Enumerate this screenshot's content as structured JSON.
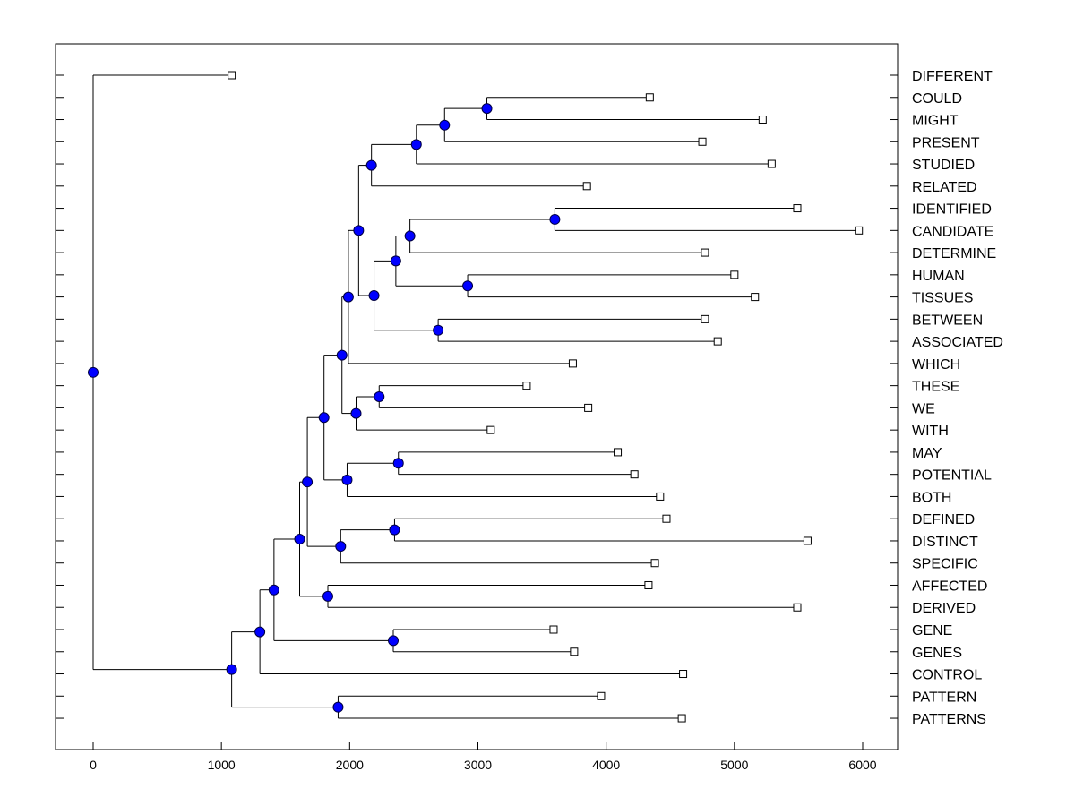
{
  "chart_data": {
    "type": "dendrogram",
    "title": "",
    "xlabel": "",
    "ylabel": "",
    "xlim": [
      -300,
      6300
    ],
    "x_ticks": [
      0,
      1000,
      2000,
      3000,
      4000,
      5000,
      6000
    ],
    "grid": false,
    "leaves": [
      {
        "label": "DIFFERENT",
        "value": 1080
      },
      {
        "label": "COULD",
        "value": 4340
      },
      {
        "label": "MIGHT",
        "value": 5220
      },
      {
        "label": "PRESENT",
        "value": 4750
      },
      {
        "label": "STUDIED",
        "value": 5290
      },
      {
        "label": "RELATED",
        "value": 3850
      },
      {
        "label": "IDENTIFIED",
        "value": 5490
      },
      {
        "label": "CANDIDATE",
        "value": 5970
      },
      {
        "label": "DETERMINE",
        "value": 4770
      },
      {
        "label": "HUMAN",
        "value": 5000
      },
      {
        "label": "TISSUES",
        "value": 5160
      },
      {
        "label": "BETWEEN",
        "value": 4770
      },
      {
        "label": "ASSOCIATED",
        "value": 4870
      },
      {
        "label": "WHICH",
        "value": 3740
      },
      {
        "label": "THESE",
        "value": 3380
      },
      {
        "label": "WE",
        "value": 3860
      },
      {
        "label": "WITH",
        "value": 3100
      },
      {
        "label": "MAY",
        "value": 4090
      },
      {
        "label": "POTENTIAL",
        "value": 4220
      },
      {
        "label": "BOTH",
        "value": 4420
      },
      {
        "label": "DEFINED",
        "value": 4470
      },
      {
        "label": "DISTINCT",
        "value": 5570
      },
      {
        "label": "SPECIFIC",
        "value": 4380
      },
      {
        "label": "AFFECTED",
        "value": 4330
      },
      {
        "label": "DERIVED",
        "value": 5490
      },
      {
        "label": "GENE",
        "value": 3590
      },
      {
        "label": "GENES",
        "value": 3750
      },
      {
        "label": "CONTROL",
        "value": 4600
      },
      {
        "label": "PATTERN",
        "value": 3960
      },
      {
        "label": "PATTERNS",
        "value": 4590
      }
    ],
    "merges": [
      {
        "id": "m1",
        "value": 3070,
        "children": [
          "COULD",
          "MIGHT"
        ]
      },
      {
        "id": "m2",
        "value": 2740,
        "children": [
          "m1",
          "PRESENT"
        ]
      },
      {
        "id": "m3",
        "value": 2520,
        "children": [
          "m2",
          "STUDIED"
        ]
      },
      {
        "id": "m4",
        "value": 2170,
        "children": [
          "m3",
          "RELATED"
        ]
      },
      {
        "id": "m5",
        "value": 3600,
        "children": [
          "IDENTIFIED",
          "CANDIDATE"
        ]
      },
      {
        "id": "m6",
        "value": 2470,
        "children": [
          "m5",
          "DETERMINE"
        ]
      },
      {
        "id": "m7",
        "value": 2920,
        "children": [
          "HUMAN",
          "TISSUES"
        ]
      },
      {
        "id": "m8",
        "value": 2360,
        "children": [
          "m6",
          "m7"
        ]
      },
      {
        "id": "m9",
        "value": 2690,
        "children": [
          "BETWEEN",
          "ASSOCIATED"
        ]
      },
      {
        "id": "m10",
        "value": 2190,
        "children": [
          "m8",
          "m9"
        ]
      },
      {
        "id": "m11",
        "value": 2070,
        "children": [
          "m4",
          "m10"
        ]
      },
      {
        "id": "m12",
        "value": 1990,
        "children": [
          "m11",
          "WHICH"
        ]
      },
      {
        "id": "m13",
        "value": 2230,
        "children": [
          "THESE",
          "WE"
        ]
      },
      {
        "id": "m14",
        "value": 2050,
        "children": [
          "m13",
          "WITH"
        ]
      },
      {
        "id": "m15",
        "value": 1940,
        "children": [
          "m12",
          "m14"
        ]
      },
      {
        "id": "m16",
        "value": 2380,
        "children": [
          "MAY",
          "POTENTIAL"
        ]
      },
      {
        "id": "m17",
        "value": 1980,
        "children": [
          "m16",
          "BOTH"
        ]
      },
      {
        "id": "m18",
        "value": 1800,
        "children": [
          "m15",
          "m17"
        ]
      },
      {
        "id": "m19",
        "value": 2350,
        "children": [
          "DEFINED",
          "DISTINCT"
        ]
      },
      {
        "id": "m20",
        "value": 1930,
        "children": [
          "m19",
          "SPECIFIC"
        ]
      },
      {
        "id": "m21",
        "value": 1670,
        "children": [
          "m18",
          "m20"
        ]
      },
      {
        "id": "m22",
        "value": 1830,
        "children": [
          "AFFECTED",
          "DERIVED"
        ]
      },
      {
        "id": "m23",
        "value": 1610,
        "children": [
          "m21",
          "m22"
        ]
      },
      {
        "id": "m24",
        "value": 2340,
        "children": [
          "GENE",
          "GENES"
        ]
      },
      {
        "id": "m25",
        "value": 1410,
        "children": [
          "m23",
          "m24"
        ]
      },
      {
        "id": "m26",
        "value": 1300,
        "children": [
          "m25",
          "CONTROL"
        ]
      },
      {
        "id": "m27",
        "value": 1910,
        "children": [
          "PATTERN",
          "PATTERNS"
        ]
      },
      {
        "id": "m28",
        "value": 1080,
        "children": [
          "m26",
          "m27"
        ]
      },
      {
        "id": "m29",
        "value": 0,
        "children": [
          "DIFFERENT",
          "m28"
        ]
      }
    ],
    "colors": {
      "node": "#0000ff",
      "node_stroke": "#000040",
      "line": "#000000",
      "leaf_marker": "#ffffff"
    }
  }
}
